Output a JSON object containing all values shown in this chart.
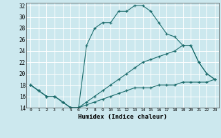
{
  "xlabel": "Humidex (Indice chaleur)",
  "bg_color": "#cce8ee",
  "line_color": "#1a6b6b",
  "grid_color": "#ffffff",
  "xlim": [
    -0.5,
    23.5
  ],
  "ylim": [
    14,
    32.5
  ],
  "xticks": [
    0,
    1,
    2,
    3,
    4,
    5,
    6,
    7,
    8,
    9,
    10,
    11,
    12,
    13,
    14,
    15,
    16,
    17,
    18,
    19,
    20,
    21,
    22,
    23
  ],
  "yticks": [
    14,
    16,
    18,
    20,
    22,
    24,
    26,
    28,
    30,
    32
  ],
  "line1_x": [
    0,
    1,
    2,
    3,
    4,
    5,
    6,
    7,
    8,
    9,
    10,
    11,
    12,
    13,
    14,
    15,
    16,
    17,
    18,
    19,
    20,
    21,
    22,
    23
  ],
  "line1_y": [
    18,
    17,
    16,
    16,
    15,
    14,
    14,
    25,
    28,
    29,
    29,
    31,
    31,
    32,
    32,
    31,
    29,
    27,
    26.5,
    25,
    25,
    22,
    20,
    19
  ],
  "line2_x": [
    0,
    1,
    2,
    3,
    4,
    5,
    6,
    7,
    8,
    9,
    10,
    11,
    12,
    13,
    14,
    15,
    16,
    17,
    18,
    19,
    20,
    21,
    22,
    23
  ],
  "line2_y": [
    18,
    17,
    16,
    16,
    15,
    14,
    14,
    14.5,
    15,
    15.5,
    16,
    16.5,
    17,
    17.5,
    17.5,
    17.5,
    18,
    18,
    18,
    18.5,
    18.5,
    18.5,
    18.5,
    19
  ],
  "line3_x": [
    0,
    1,
    2,
    3,
    4,
    5,
    6,
    7,
    8,
    9,
    10,
    11,
    12,
    13,
    14,
    15,
    16,
    17,
    18,
    19,
    20,
    21,
    22,
    23
  ],
  "line3_y": [
    18,
    17,
    16,
    16,
    15,
    14,
    14,
    15,
    16,
    17,
    18,
    19,
    20,
    21,
    22,
    22.5,
    23,
    23.5,
    24,
    25,
    25,
    22,
    20,
    19
  ]
}
